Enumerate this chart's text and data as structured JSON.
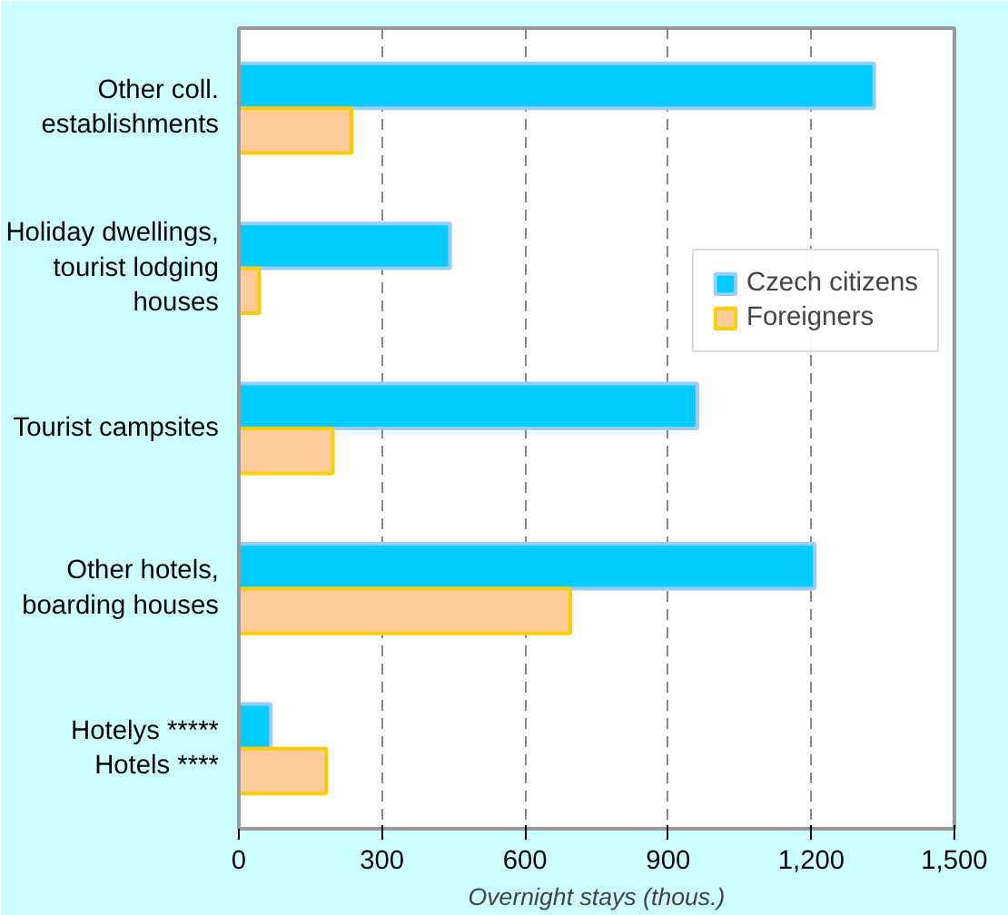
{
  "chart_data": {
    "type": "bar",
    "orientation": "horizontal",
    "xlabel": "Overnight stays (thous.)",
    "categories": [
      "Other coll.\nestablishments",
      "Holiday dwellings,\ntourist lodging\nhouses",
      "Tourist campsites",
      "Other hotels,\nboarding houses",
      "Hotelys *****\nHotels ****"
    ],
    "series": [
      {
        "name": "Czech citizens",
        "color": "#00ccff",
        "values": [
          1332,
          443,
          961,
          1207,
          67
        ]
      },
      {
        "name": "Foreigners",
        "color": "#ffcc99",
        "values": [
          236,
          43,
          197,
          695,
          183
        ]
      }
    ],
    "xlim": [
      0,
      1500
    ],
    "xticks": [
      0,
      300,
      600,
      900,
      {
        "value": 1200,
        "label": "1,200"
      },
      {
        "value": 1500,
        "label": "1,500"
      }
    ],
    "grid": "x",
    "legend": "right"
  }
}
